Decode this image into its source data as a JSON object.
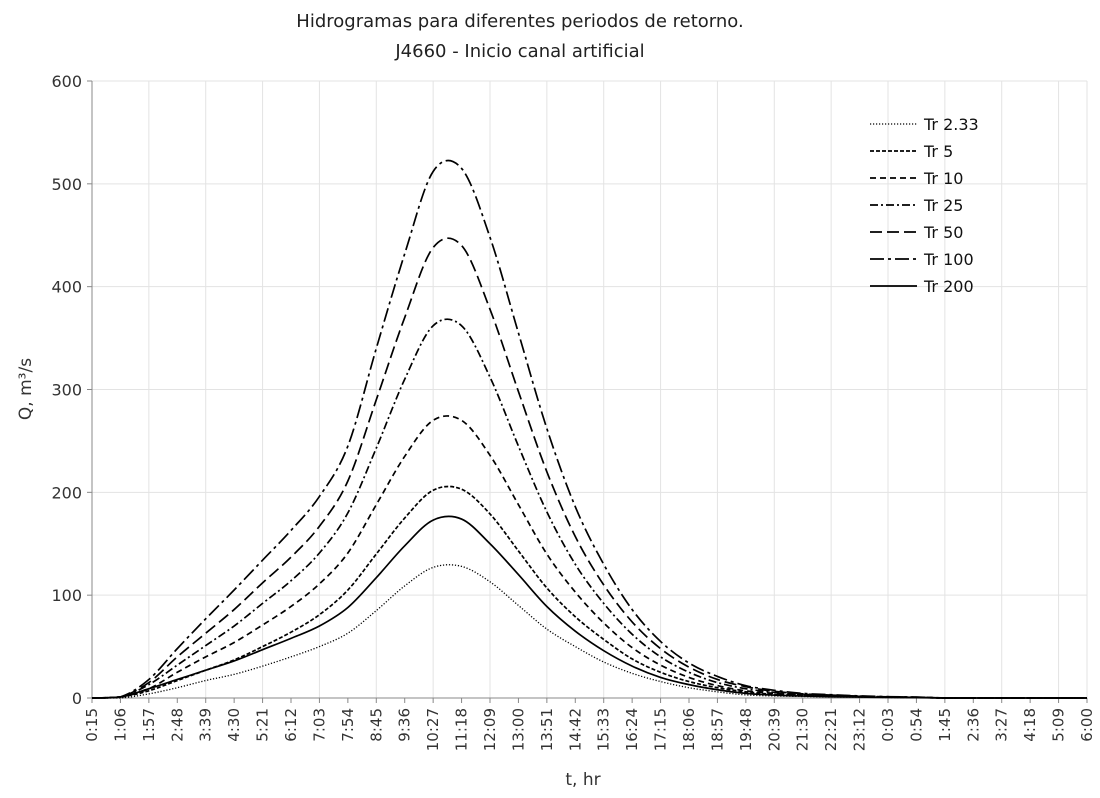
{
  "chart_data": {
    "type": "line",
    "title": "Hidrogramas para diferentes periodos de retorno.",
    "subtitle": "J4660 - Inicio canal artificial",
    "xlabel": "t, hr",
    "ylabel": "Q, m³/s",
    "ylim": [
      0,
      600
    ],
    "yticks": [
      "0",
      "100",
      "200",
      "300",
      "400",
      "500",
      "600"
    ],
    "categories": [
      "0:15",
      "1:06",
      "1:57",
      "2:48",
      "3:39",
      "4:30",
      "5:21",
      "6:12",
      "7:03",
      "7:54",
      "8:45",
      "9:36",
      "10:27",
      "11:18",
      "12:09",
      "13:00",
      "13:51",
      "14:42",
      "15:33",
      "16:24",
      "17:15",
      "18:06",
      "18:57",
      "19:48",
      "20:39",
      "21:30",
      "22:21",
      "23:12",
      "0:03",
      "0:54",
      "1:45",
      "2:36",
      "3:27",
      "4:18",
      "5:09",
      "6:00"
    ],
    "grid": true,
    "legend_position": "top-right",
    "series": [
      {
        "name": "Tr 2.33",
        "style": "dotted",
        "values": [
          0,
          0,
          4,
          10,
          17,
          23,
          31,
          40,
          50,
          63,
          85,
          109,
          127,
          128,
          113,
          90,
          67,
          50,
          35,
          24,
          16,
          10,
          6,
          3,
          2,
          1.5,
          1,
          0.8,
          0.5,
          0.3,
          0,
          0,
          0,
          0,
          0,
          0
        ]
      },
      {
        "name": "Tr 5",
        "style": "short-dash",
        "values": [
          0,
          1,
          7,
          17,
          27,
          37,
          50,
          64,
          81,
          105,
          140,
          175,
          202,
          203,
          179,
          143,
          107,
          79,
          57,
          38,
          25,
          16,
          10,
          6,
          3.5,
          2.5,
          1.8,
          1.2,
          0.8,
          0.5,
          0,
          0,
          0,
          0,
          0,
          0
        ]
      },
      {
        "name": "Tr 10",
        "style": "dash",
        "values": [
          0,
          1,
          9,
          25,
          40,
          54,
          71,
          89,
          111,
          141,
          188,
          235,
          270,
          270,
          236,
          188,
          140,
          103,
          73,
          49,
          32,
          20,
          12,
          7,
          4.5,
          3,
          2,
          1.4,
          0.9,
          0.6,
          0,
          0,
          0,
          0,
          0,
          0
        ]
      },
      {
        "name": "Tr 25",
        "style": "dash-dot",
        "values": [
          0,
          1,
          13,
          32,
          51,
          70,
          92,
          114,
          141,
          180,
          243,
          310,
          362,
          362,
          312,
          245,
          181,
          130,
          92,
          62,
          40,
          25,
          15,
          9,
          5.5,
          3.5,
          2.4,
          1.6,
          1,
          0.7,
          0,
          0,
          0,
          0,
          0,
          0
        ]
      },
      {
        "name": "Tr 50",
        "style": "long-dash",
        "values": [
          0,
          1,
          15,
          40,
          63,
          86,
          112,
          137,
          167,
          211,
          290,
          370,
          438,
          440,
          378,
          298,
          220,
          157,
          110,
          74,
          48,
          30,
          18,
          11,
          6.5,
          4,
          2.8,
          1.8,
          1.1,
          0.8,
          0,
          0,
          0,
          0,
          0,
          0
        ]
      },
      {
        "name": "Tr 100",
        "style": "long-dash-dot",
        "values": [
          0,
          1,
          18,
          48,
          77,
          105,
          134,
          163,
          196,
          245,
          340,
          432,
          512,
          515,
          448,
          355,
          262,
          186,
          130,
          86,
          55,
          34,
          21,
          12,
          7.5,
          4.5,
          3.2,
          2,
          1.3,
          0.9,
          0,
          0,
          0,
          0,
          0,
          0
        ]
      },
      {
        "name": "Tr 200",
        "style": "solid",
        "values": [
          0,
          1,
          9,
          18,
          27,
          36,
          47,
          58,
          70,
          88,
          117,
          148,
          173,
          174,
          150,
          120,
          89,
          65,
          46,
          31,
          20,
          13,
          8,
          4.5,
          2.8,
          1.9,
          1.3,
          0.9,
          0.6,
          0.4,
          0,
          0,
          0,
          0,
          0,
          0
        ]
      }
    ]
  }
}
